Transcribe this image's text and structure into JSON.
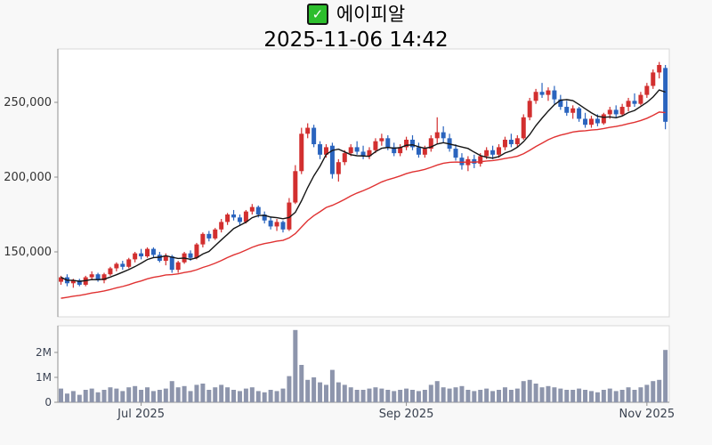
{
  "header": {
    "checkbox_state": "checked",
    "check_glyph": "✓",
    "symbol_name": "에이피알",
    "datetime": "2025-11-06 14:42"
  },
  "colors": {
    "background": "#f8f8f8",
    "panel_background": "#ffffff",
    "panel_border": "#d8d8d8",
    "axis_line": "#8f8f8f",
    "up_candle": "#d22f2f",
    "down_candle": "#2a64be",
    "volume_bar": "#8d95ac",
    "ma_short_line": "#151515",
    "ma_long_line": "#e03232",
    "checkbox_green": "#2cbe2c"
  },
  "chart_data": {
    "type": "candlestick",
    "title": "에이피알",
    "subtitle": "2025-11-06 14:42",
    "legend_position": "none",
    "grid": false,
    "price_axis": {
      "tick_labels": [
        "250,000",
        "200,000",
        "150,000"
      ],
      "tick_values_thousands": [
        250,
        200,
        150
      ],
      "range_thousands": [
        107,
        286
      ]
    },
    "volume_axis": {
      "tick_labels": [
        "2M",
        "1M",
        "0"
      ],
      "tick_values_millions": [
        2,
        1,
        0
      ],
      "range_millions": [
        0,
        3.1
      ]
    },
    "x_axis_labels": [
      {
        "label": "Jul 2025",
        "day_index": 13
      },
      {
        "label": "Sep 2025",
        "day_index": 56
      },
      {
        "label": "Nov 2025",
        "day_index": 95
      }
    ],
    "price_unit": 1000,
    "volume_unit": 1000000,
    "ma_short": {
      "window": 7
    },
    "ma_long": {
      "seed": 118,
      "alpha": 0.065
    },
    "candles_ohlcv": [
      [
        130,
        134,
        128,
        133,
        0.55
      ],
      [
        133,
        135,
        127,
        129,
        0.35
      ],
      [
        129,
        132,
        126,
        131,
        0.45
      ],
      [
        131,
        132,
        127,
        128,
        0.3
      ],
      [
        128,
        134,
        127,
        133,
        0.5
      ],
      [
        133,
        137,
        131,
        135,
        0.55
      ],
      [
        135,
        136,
        130,
        131,
        0.4
      ],
      [
        131,
        136,
        129,
        135,
        0.5
      ],
      [
        135,
        140,
        134,
        139,
        0.6
      ],
      [
        139,
        143,
        137,
        142,
        0.55
      ],
      [
        142,
        144,
        138,
        140,
        0.45
      ],
      [
        140,
        146,
        139,
        145,
        0.6
      ],
      [
        145,
        150,
        143,
        149,
        0.65
      ],
      [
        149,
        152,
        145,
        147,
        0.5
      ],
      [
        147,
        153,
        146,
        152,
        0.6
      ],
      [
        152,
        153,
        146,
        148,
        0.45
      ],
      [
        148,
        150,
        143,
        144,
        0.5
      ],
      [
        144,
        149,
        141,
        147,
        0.55
      ],
      [
        147,
        148,
        136,
        138,
        0.85
      ],
      [
        138,
        144,
        136,
        143,
        0.6
      ],
      [
        143,
        150,
        142,
        149,
        0.65
      ],
      [
        149,
        151,
        144,
        146,
        0.45
      ],
      [
        146,
        156,
        145,
        155,
        0.7
      ],
      [
        155,
        163,
        153,
        162,
        0.75
      ],
      [
        162,
        164,
        157,
        159,
        0.5
      ],
      [
        159,
        166,
        158,
        165,
        0.6
      ],
      [
        165,
        172,
        163,
        170,
        0.7
      ],
      [
        170,
        176,
        168,
        175,
        0.6
      ],
      [
        175,
        178,
        171,
        173,
        0.5
      ],
      [
        173,
        175,
        168,
        170,
        0.45
      ],
      [
        170,
        178,
        169,
        177,
        0.55
      ],
      [
        177,
        182,
        175,
        180,
        0.6
      ],
      [
        180,
        181,
        173,
        175,
        0.45
      ],
      [
        175,
        177,
        169,
        171,
        0.4
      ],
      [
        171,
        173,
        165,
        167,
        0.5
      ],
      [
        167,
        172,
        164,
        170,
        0.45
      ],
      [
        170,
        171,
        163,
        165,
        0.55
      ],
      [
        165,
        186,
        164,
        183,
        1.05
      ],
      [
        183,
        208,
        182,
        204,
        2.9
      ],
      [
        204,
        233,
        202,
        229,
        1.5
      ],
      [
        229,
        236,
        226,
        233,
        0.9
      ],
      [
        233,
        235,
        220,
        222,
        1.0
      ],
      [
        222,
        224,
        212,
        215,
        0.8
      ],
      [
        215,
        222,
        213,
        220,
        0.7
      ],
      [
        221,
        223,
        199,
        202,
        1.3
      ],
      [
        202,
        212,
        197,
        210,
        0.8
      ],
      [
        210,
        218,
        208,
        216,
        0.7
      ],
      [
        216,
        222,
        214,
        220,
        0.6
      ],
      [
        220,
        224,
        215,
        217,
        0.5
      ],
      [
        217,
        221,
        212,
        214,
        0.5
      ],
      [
        214,
        220,
        212,
        218,
        0.55
      ],
      [
        218,
        226,
        216,
        224,
        0.6
      ],
      [
        224,
        229,
        221,
        226,
        0.55
      ],
      [
        226,
        228,
        218,
        220,
        0.5
      ],
      [
        220,
        223,
        214,
        216,
        0.45
      ],
      [
        216,
        222,
        214,
        220,
        0.5
      ],
      [
        220,
        227,
        218,
        225,
        0.55
      ],
      [
        225,
        228,
        218,
        220,
        0.5
      ],
      [
        220,
        223,
        213,
        215,
        0.45
      ],
      [
        215,
        221,
        213,
        219,
        0.5
      ],
      [
        219,
        228,
        217,
        226,
        0.7
      ],
      [
        226,
        240,
        222,
        230,
        0.85
      ],
      [
        230,
        234,
        223,
        226,
        0.6
      ],
      [
        226,
        229,
        217,
        219,
        0.55
      ],
      [
        219,
        222,
        211,
        213,
        0.6
      ],
      [
        213,
        216,
        205,
        208,
        0.65
      ],
      [
        208,
        214,
        204,
        212,
        0.5
      ],
      [
        212,
        215,
        206,
        209,
        0.45
      ],
      [
        209,
        216,
        207,
        214,
        0.5
      ],
      [
        214,
        220,
        212,
        218,
        0.55
      ],
      [
        218,
        221,
        212,
        215,
        0.45
      ],
      [
        215,
        222,
        213,
        220,
        0.5
      ],
      [
        220,
        227,
        218,
        225,
        0.6
      ],
      [
        225,
        229,
        220,
        222,
        0.5
      ],
      [
        222,
        228,
        220,
        226,
        0.55
      ],
      [
        226,
        242,
        225,
        240,
        0.85
      ],
      [
        240,
        253,
        238,
        251,
        0.9
      ],
      [
        251,
        259,
        249,
        257,
        0.75
      ],
      [
        257,
        263,
        253,
        255,
        0.6
      ],
      [
        255,
        260,
        251,
        258,
        0.65
      ],
      [
        258,
        261,
        249,
        252,
        0.6
      ],
      [
        252,
        255,
        245,
        247,
        0.55
      ],
      [
        247,
        251,
        241,
        243,
        0.5
      ],
      [
        243,
        248,
        239,
        246,
        0.5
      ],
      [
        246,
        247,
        237,
        239,
        0.55
      ],
      [
        239,
        243,
        233,
        235,
        0.5
      ],
      [
        235,
        241,
        233,
        239,
        0.45
      ],
      [
        239,
        242,
        234,
        236,
        0.4
      ],
      [
        236,
        243,
        235,
        242,
        0.5
      ],
      [
        242,
        247,
        239,
        245,
        0.55
      ],
      [
        245,
        248,
        240,
        242,
        0.45
      ],
      [
        242,
        249,
        241,
        247,
        0.5
      ],
      [
        247,
        253,
        244,
        251,
        0.6
      ],
      [
        251,
        256,
        247,
        249,
        0.5
      ],
      [
        249,
        257,
        248,
        255,
        0.6
      ],
      [
        255,
        263,
        253,
        261,
        0.7
      ],
      [
        261,
        272,
        259,
        270,
        0.85
      ],
      [
        270,
        277,
        266,
        275,
        0.9
      ],
      [
        273,
        275,
        232,
        237,
        2.1
      ]
    ]
  }
}
